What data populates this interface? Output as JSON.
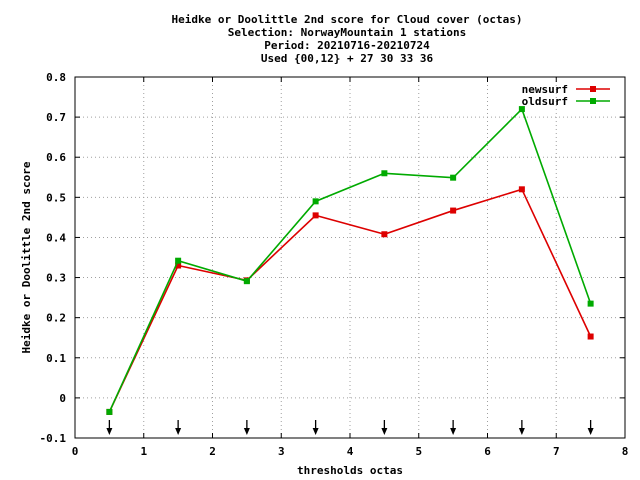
{
  "chart_data": {
    "type": "line",
    "title_lines": [
      "Heidke or Doolittle 2nd score  for Cloud cover (octas)",
      "Selection: NorwayMountain      1 stations",
      "Period: 20210716-20210724",
      "Used {00,12} + 27 30 33 36"
    ],
    "xlabel": "thresholds octas",
    "ylabel": "Heidke or Doolittle 2nd score",
    "xlim": [
      0,
      8
    ],
    "ylim": [
      -0.1,
      0.8
    ],
    "x_ticks": [
      "0",
      "1",
      "2",
      "3",
      "4",
      "5",
      "6",
      "7",
      "8"
    ],
    "y_ticks": [
      "-0.1",
      "0",
      "0.1",
      "0.2",
      "0.3",
      "0.4",
      "0.5",
      "0.6",
      "0.7",
      "0.8"
    ],
    "grid": true,
    "legend_position": "top-right",
    "x": [
      0.5,
      1.5,
      2.5,
      3.5,
      4.5,
      5.5,
      6.5,
      7.5
    ],
    "series": [
      {
        "name": "newsurf",
        "color": "#dd0000",
        "values": [
          -0.035,
          0.33,
          0.293,
          0.455,
          0.408,
          0.467,
          0.52,
          0.153
        ]
      },
      {
        "name": "oldsurf",
        "color": "#00aa00",
        "values": [
          -0.035,
          0.342,
          0.291,
          0.49,
          0.56,
          0.549,
          0.72,
          0.235
        ]
      }
    ],
    "arrow_markers_x": [
      0.5,
      1.5,
      2.5,
      3.5,
      4.5,
      5.5,
      6.5,
      7.5
    ]
  }
}
